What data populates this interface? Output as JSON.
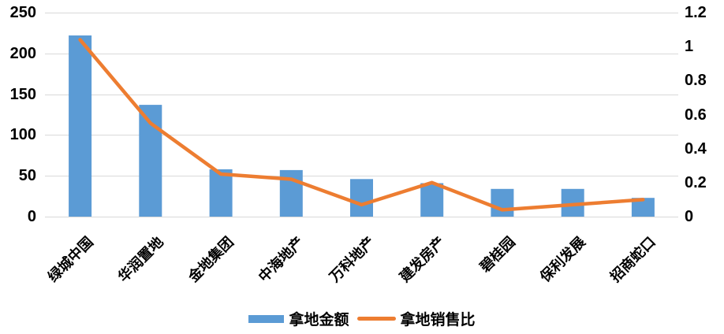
{
  "chart_data": {
    "type": "combo-bar-line",
    "title": "",
    "categories": [
      "绿城中国",
      "华润置地",
      "金地集团",
      "中海地产",
      "万科地产",
      "建发房产",
      "碧桂园",
      "保利发展",
      "招商蛇口"
    ],
    "series": [
      {
        "name": "拿地金额",
        "type": "bar",
        "axis": "left",
        "color": "#5B9BD5",
        "values": [
          222,
          137,
          58,
          57,
          46,
          41,
          34,
          34,
          23
        ]
      },
      {
        "name": "拿地销售比",
        "type": "line",
        "axis": "right",
        "color": "#ED7D31",
        "values": [
          1.04,
          0.55,
          0.25,
          0.22,
          0.07,
          0.2,
          0.04,
          0.07,
          0.1
        ]
      }
    ],
    "left_axis": {
      "min": 0,
      "max": 250,
      "step": 50,
      "tick_labels": [
        "0",
        "50",
        "100",
        "150",
        "200",
        "250"
      ]
    },
    "right_axis": {
      "min": 0,
      "max": 1.2,
      "step": 0.2,
      "tick_labels": [
        "0",
        "0.2",
        "0.4",
        "0.6",
        "0.8",
        "1",
        "1.2"
      ]
    },
    "grid": {
      "horizontal": true,
      "color": "#D9D9D9"
    },
    "legend": {
      "position": "bottom",
      "entries": [
        "拿地金额",
        "拿地销售比"
      ]
    },
    "background": "#FFFFFF",
    "text_color": "#000000"
  }
}
